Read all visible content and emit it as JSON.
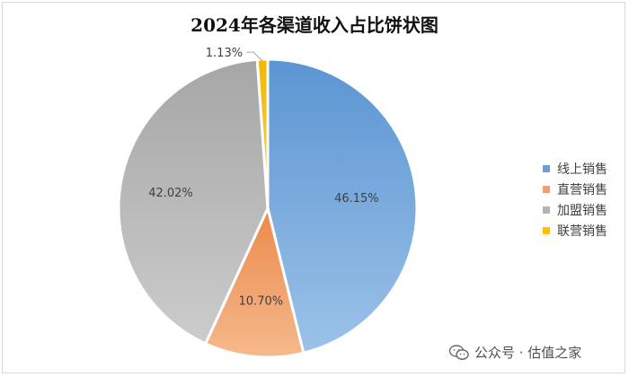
{
  "chart_data": {
    "type": "pie",
    "title": "2024年各渠道收入占比饼状图",
    "slices": [
      {
        "name": "线上销售",
        "value": 46.15,
        "label": "46.15%",
        "color": "#6a9fd6"
      },
      {
        "name": "直营销售",
        "value": 10.7,
        "label": "10.70%",
        "color": "#f0a06a"
      },
      {
        "name": "加盟销售",
        "value": 42.02,
        "label": "42.02%",
        "color": "#b4b4b4"
      },
      {
        "name": "联营销售",
        "value": 1.13,
        "label": "1.13%",
        "color": "#ffc000"
      }
    ],
    "legend_position": "right"
  },
  "watermark": {
    "text": "公众号 · 估值之家",
    "icon": "wechat-icon"
  }
}
